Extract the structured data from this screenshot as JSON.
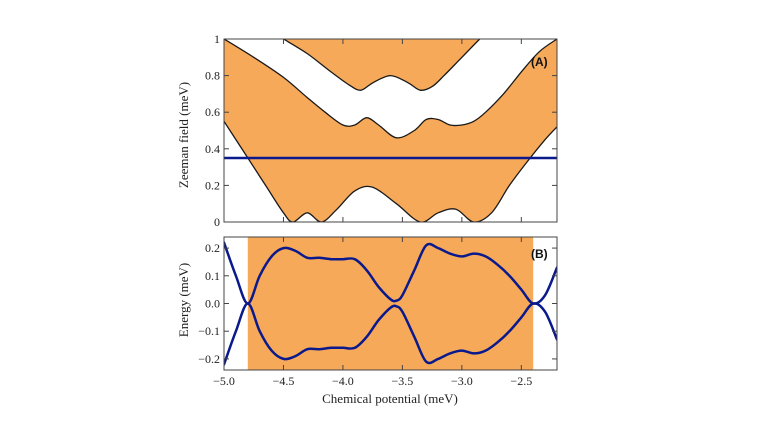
{
  "chart_data": [
    {
      "type": "area",
      "panel_label": "(A)",
      "xlabel": "",
      "ylabel": "Zeeman field (meV)",
      "xlim": [
        -5.0,
        -2.2
      ],
      "ylim": [
        0,
        1.0
      ],
      "x_ticks": [
        -5.0,
        -4.5,
        -4.0,
        -3.5,
        -3.0,
        -2.5
      ],
      "y_ticks": [
        0,
        0.2,
        0.4,
        0.6,
        0.8,
        1.0
      ],
      "y_tick_labels": [
        "0",
        "0.2",
        "0.4",
        "0.6",
        "0.8",
        "1"
      ],
      "shaded_color": "#f7a95a",
      "line_color": "#0a1a8c",
      "horizontal_line": {
        "y": 0.35
      },
      "boundaries": [
        {
          "x": [
            -5.0,
            -4.8,
            -4.65,
            -4.5,
            -4.42,
            -4.3,
            -4.18,
            -4.05,
            -3.9,
            -3.75,
            -3.55,
            -3.35,
            -3.2,
            -3.05,
            -2.9,
            -2.75,
            -2.6,
            -2.45,
            -2.3,
            -2.2
          ],
          "y": [
            0.55,
            0.35,
            0.2,
            0.05,
            0.0,
            0.05,
            0.0,
            0.07,
            0.17,
            0.19,
            0.1,
            0.0,
            0.05,
            0.07,
            0.0,
            0.05,
            0.2,
            0.33,
            0.45,
            0.52
          ]
        },
        {
          "x": [
            -5.0,
            -4.75,
            -4.5,
            -4.3,
            -4.15,
            -4.0,
            -3.9,
            -3.8,
            -3.7,
            -3.55,
            -3.4,
            -3.3,
            -3.2,
            -3.1,
            -3.0,
            -2.9,
            -2.8,
            -2.65,
            -2.5,
            -2.35,
            -2.2
          ],
          "y": [
            1.0,
            0.9,
            0.79,
            0.68,
            0.6,
            0.53,
            0.53,
            0.57,
            0.53,
            0.46,
            0.5,
            0.56,
            0.56,
            0.53,
            0.53,
            0.55,
            0.6,
            0.7,
            0.82,
            0.93,
            1.0
          ]
        },
        {
          "x": [
            -4.5,
            -4.3,
            -4.1,
            -3.95,
            -3.85,
            -3.75,
            -3.6,
            -3.45,
            -3.35,
            -3.25,
            -3.15,
            -3.0,
            -2.85
          ],
          "y": [
            1.0,
            0.92,
            0.82,
            0.75,
            0.72,
            0.76,
            0.8,
            0.76,
            0.72,
            0.74,
            0.8,
            0.9,
            1.0
          ]
        }
      ]
    },
    {
      "type": "line",
      "panel_label": "(B)",
      "xlabel": "Chemical potential (meV)",
      "ylabel": "Energy (meV)",
      "xlim": [
        -5.0,
        -2.2
      ],
      "ylim": [
        -0.24,
        0.24
      ],
      "x_ticks": [
        -5.0,
        -4.5,
        -4.0,
        -3.5,
        -3.0,
        -2.5
      ],
      "x_tick_labels": [
        "−5.0",
        "−4.5",
        "−4.0",
        "−3.5",
        "−3.0",
        "−2.5"
      ],
      "y_ticks": [
        0.2,
        0.1,
        0.0,
        -0.1,
        -0.2
      ],
      "y_tick_labels": [
        "0.2",
        "0.1",
        "0.0",
        "−0.1",
        "−0.2"
      ],
      "shaded_range": [
        -4.8,
        -2.4
      ],
      "shaded_color": "#f7a95a",
      "line_color": "#0a1a8c",
      "series": [
        {
          "x": [
            -5.0,
            -4.9,
            -4.8,
            -4.7,
            -4.6,
            -4.5,
            -4.4,
            -4.3,
            -4.2,
            -4.1,
            -4.0,
            -3.9,
            -3.8,
            -3.7,
            -3.6,
            -3.55,
            -3.5,
            -3.4,
            -3.3,
            -3.2,
            -3.1,
            -3.0,
            -2.9,
            -2.8,
            -2.7,
            -2.6,
            -2.5,
            -2.4,
            -2.3,
            -2.2
          ],
          "y": [
            0.22,
            0.1,
            0.0,
            0.1,
            0.17,
            0.2,
            0.19,
            0.165,
            0.165,
            0.16,
            0.16,
            0.16,
            0.12,
            0.06,
            0.015,
            0.01,
            0.03,
            0.12,
            0.21,
            0.2,
            0.18,
            0.17,
            0.18,
            0.17,
            0.14,
            0.1,
            0.05,
            0.0,
            0.03,
            0.13
          ]
        },
        {
          "x": [
            -5.0,
            -4.9,
            -4.8,
            -4.7,
            -4.6,
            -4.5,
            -4.4,
            -4.3,
            -4.2,
            -4.1,
            -4.0,
            -3.9,
            -3.8,
            -3.7,
            -3.6,
            -3.55,
            -3.5,
            -3.4,
            -3.3,
            -3.2,
            -3.1,
            -3.0,
            -2.9,
            -2.8,
            -2.7,
            -2.6,
            -2.5,
            -2.4,
            -2.3,
            -2.2
          ],
          "y": [
            -0.22,
            -0.1,
            0.0,
            -0.1,
            -0.17,
            -0.2,
            -0.19,
            -0.165,
            -0.165,
            -0.16,
            -0.16,
            -0.16,
            -0.12,
            -0.06,
            -0.015,
            -0.01,
            -0.03,
            -0.12,
            -0.21,
            -0.2,
            -0.18,
            -0.17,
            -0.18,
            -0.17,
            -0.14,
            -0.1,
            -0.05,
            0.0,
            -0.03,
            -0.13
          ]
        }
      ]
    }
  ]
}
